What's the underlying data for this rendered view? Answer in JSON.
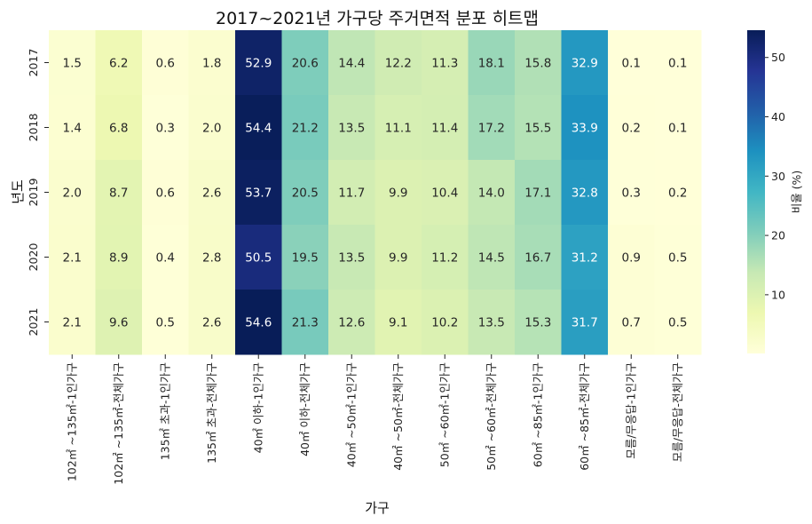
{
  "chart_data": {
    "type": "heatmap",
    "title": "2017~2021년 가구당 주거면적 분포 히트맵",
    "xlabel": "가구",
    "ylabel": "년도",
    "colorbar_label": "비율 (%)",
    "colormap": "YlGnBu",
    "value_range": [
      0.1,
      54.6
    ],
    "colorbar_ticks": [
      10,
      20,
      30,
      40,
      50
    ],
    "rows": [
      "2017",
      "2018",
      "2019",
      "2020",
      "2021"
    ],
    "columns": [
      "102㎡ ~135㎡-1인가구",
      "102㎡ ~135㎡-전체가구",
      "135㎡ 초과-1인가구",
      "135㎡ 초과-전체가구",
      "40㎡ 이하-1인가구",
      "40㎡ 이하-전체가구",
      "40㎡ ~50㎡-1인가구",
      "40㎡ ~50㎡-전체가구",
      "50㎡ ~60㎡-1인가구",
      "50㎡ ~60㎡-전체가구",
      "60㎡ ~85㎡-1인가구",
      "60㎡ ~85㎡-전체가구",
      "모름/무응답-1인가구",
      "모름/무응답-전체가구"
    ],
    "values": [
      [
        1.5,
        6.2,
        0.6,
        1.8,
        52.9,
        20.6,
        14.4,
        12.2,
        11.3,
        18.1,
        15.8,
        32.9,
        0.1,
        0.1
      ],
      [
        1.4,
        6.8,
        0.3,
        2.0,
        54.4,
        21.2,
        13.5,
        11.1,
        11.4,
        17.2,
        15.5,
        33.9,
        0.2,
        0.1
      ],
      [
        2.0,
        8.7,
        0.6,
        2.6,
        53.7,
        20.5,
        11.7,
        9.9,
        10.4,
        14.0,
        17.1,
        32.8,
        0.3,
        0.2
      ],
      [
        2.1,
        8.9,
        0.4,
        2.8,
        50.5,
        19.5,
        13.5,
        9.9,
        11.2,
        14.5,
        16.7,
        31.2,
        0.9,
        0.5
      ],
      [
        2.1,
        9.6,
        0.5,
        2.6,
        54.6,
        21.3,
        12.6,
        9.1,
        10.2,
        13.5,
        15.3,
        31.7,
        0.7,
        0.5
      ]
    ]
  }
}
